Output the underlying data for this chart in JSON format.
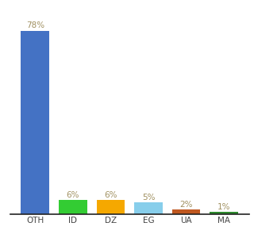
{
  "categories": [
    "OTH",
    "ID",
    "DZ",
    "EG",
    "UA",
    "MA"
  ],
  "values": [
    78,
    6,
    6,
    5,
    2,
    1
  ],
  "labels": [
    "78%",
    "6%",
    "6%",
    "5%",
    "2%",
    "1%"
  ],
  "bar_colors": [
    "#4472c4",
    "#33cc33",
    "#f5a800",
    "#87ceeb",
    "#c05820",
    "#2e8b2e"
  ],
  "background_color": "#ffffff",
  "label_color": "#a09060",
  "label_fontsize": 7.5,
  "tick_fontsize": 7.5,
  "ylim": [
    0,
    86
  ],
  "bar_width": 0.75
}
